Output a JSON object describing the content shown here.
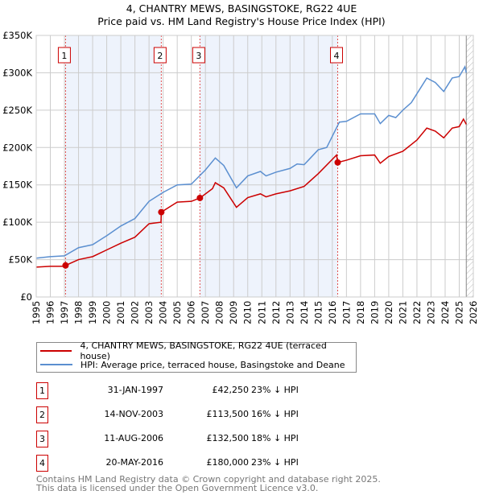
{
  "chart_data": {
    "type": "line",
    "title": "4, CHANTRY MEWS, BASINGSTOKE, RG22 4UE",
    "subtitle": "Price paid vs. HM Land Registry's House Price Index (HPI)",
    "xlim": [
      1995,
      2026
    ],
    "ylim": [
      0,
      350000
    ],
    "x_ticks": [
      "1995",
      "1996",
      "1997",
      "1998",
      "1999",
      "2000",
      "2001",
      "2002",
      "2003",
      "2004",
      "2005",
      "2006",
      "2007",
      "2008",
      "2009",
      "2010",
      "2011",
      "2012",
      "2013",
      "2014",
      "2015",
      "2016",
      "2017",
      "2018",
      "2019",
      "2020",
      "2021",
      "2022",
      "2023",
      "2024",
      "2025",
      "2026"
    ],
    "y_ticks": [
      {
        "v": 0,
        "label": "£0"
      },
      {
        "v": 50000,
        "label": "£50K"
      },
      {
        "v": 100000,
        "label": "£100K"
      },
      {
        "v": 150000,
        "label": "£150K"
      },
      {
        "v": 200000,
        "label": "£200K"
      },
      {
        "v": 250000,
        "label": "£250K"
      },
      {
        "v": 300000,
        "label": "£300K"
      },
      {
        "v": 350000,
        "label": "£350K"
      }
    ],
    "grid": true,
    "series": [
      {
        "name": "4, CHANTRY MEWS, BASINGSTOKE, RG22 4UE (terraced house)",
        "color": "#cc0000",
        "points": [
          [
            1995,
            40000
          ],
          [
            1996,
            41000
          ],
          [
            1997,
            41000
          ],
          [
            1997.08,
            42250
          ],
          [
            1998,
            50000
          ],
          [
            1999,
            54000
          ],
          [
            2000,
            63000
          ],
          [
            2001,
            72000
          ],
          [
            2002,
            80000
          ],
          [
            2003,
            98000
          ],
          [
            2003.85,
            100000
          ],
          [
            2003.87,
            113500
          ],
          [
            2005,
            127000
          ],
          [
            2006,
            128000
          ],
          [
            2006.61,
            132500
          ],
          [
            2007.5,
            145000
          ],
          [
            2007.7,
            153000
          ],
          [
            2008.3,
            146000
          ],
          [
            2009.2,
            120000
          ],
          [
            2010,
            133000
          ],
          [
            2010.9,
            138000
          ],
          [
            2011.3,
            134000
          ],
          [
            2012,
            138000
          ],
          [
            2013,
            142000
          ],
          [
            2014,
            148000
          ],
          [
            2015,
            165000
          ],
          [
            2016.3,
            190000
          ],
          [
            2016.38,
            180000
          ],
          [
            2017,
            183000
          ],
          [
            2018,
            189000
          ],
          [
            2019,
            190000
          ],
          [
            2019.4,
            179000
          ],
          [
            2020,
            188000
          ],
          [
            2021,
            195000
          ],
          [
            2022,
            210000
          ],
          [
            2022.7,
            226000
          ],
          [
            2023.3,
            222000
          ],
          [
            2023.9,
            213000
          ],
          [
            2024.5,
            226000
          ],
          [
            2025,
            228000
          ],
          [
            2025.3,
            238000
          ],
          [
            2025.5,
            231000
          ]
        ]
      },
      {
        "name": "HPI: Average price, terraced house, Basingstoke and Deane",
        "color": "#5b8fd0",
        "points": [
          [
            1995,
            52000
          ],
          [
            1996,
            54000
          ],
          [
            1997,
            55000
          ],
          [
            1998,
            66000
          ],
          [
            1999,
            70000
          ],
          [
            2000,
            82000
          ],
          [
            2001,
            95000
          ],
          [
            2002,
            105000
          ],
          [
            2003,
            128000
          ],
          [
            2004,
            140000
          ],
          [
            2005,
            150000
          ],
          [
            2006,
            151000
          ],
          [
            2007,
            170000
          ],
          [
            2007.7,
            186000
          ],
          [
            2008.3,
            176000
          ],
          [
            2009.2,
            146000
          ],
          [
            2010,
            162000
          ],
          [
            2010.9,
            168000
          ],
          [
            2011.3,
            162000
          ],
          [
            2012,
            167000
          ],
          [
            2013,
            172000
          ],
          [
            2013.5,
            178000
          ],
          [
            2014,
            177000
          ],
          [
            2015,
            197000
          ],
          [
            2015.6,
            200000
          ],
          [
            2016.5,
            234000
          ],
          [
            2017,
            235000
          ],
          [
            2018,
            245000
          ],
          [
            2019,
            245000
          ],
          [
            2019.4,
            232000
          ],
          [
            2020,
            243000
          ],
          [
            2020.5,
            240000
          ],
          [
            2021,
            250000
          ],
          [
            2021.6,
            260000
          ],
          [
            2022,
            272000
          ],
          [
            2022.7,
            293000
          ],
          [
            2023.3,
            287000
          ],
          [
            2023.9,
            275000
          ],
          [
            2024.5,
            293000
          ],
          [
            2025,
            295000
          ],
          [
            2025.4,
            308000
          ],
          [
            2025.5,
            300000
          ]
        ]
      }
    ],
    "sales": [
      {
        "n": "1",
        "x": 1997.08,
        "y": 42250
      },
      {
        "n": "2",
        "x": 2003.87,
        "y": 113500
      },
      {
        "n": "3",
        "x": 2006.61,
        "y": 132500
      },
      {
        "n": "4",
        "x": 2016.38,
        "y": 180000
      }
    ],
    "shaded": [
      [
        1997.08,
        2003.87
      ],
      [
        2006.61,
        2016.38
      ]
    ],
    "hatched_from": 2025.5
  },
  "legend": [
    "4, CHANTRY MEWS, BASINGSTOKE, RG22 4UE (terraced house)",
    "HPI: Average price, terraced house, Basingstoke and Deane"
  ],
  "transactions": [
    {
      "n": "1",
      "date": "31-JAN-1997",
      "price": "£42,250",
      "hpi": "23% ↓ HPI"
    },
    {
      "n": "2",
      "date": "14-NOV-2003",
      "price": "£113,500",
      "hpi": "16% ↓ HPI"
    },
    {
      "n": "3",
      "date": "11-AUG-2006",
      "price": "£132,500",
      "hpi": "18% ↓ HPI"
    },
    {
      "n": "4",
      "date": "20-MAY-2016",
      "price": "£180,000",
      "hpi": "23% ↓ HPI"
    }
  ],
  "footer": [
    "Contains HM Land Registry data © Crown copyright and database right 2025.",
    "This data is licensed under the Open Government Licence v3.0."
  ]
}
